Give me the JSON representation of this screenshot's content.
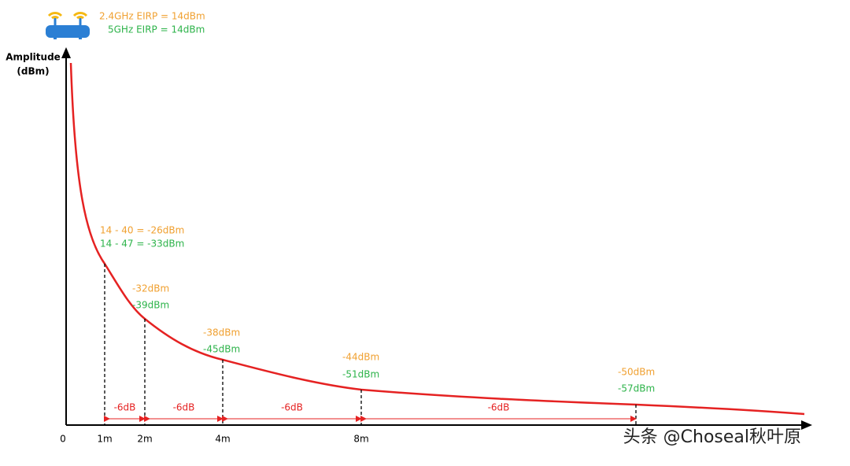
{
  "legend": {
    "line_24": "2.4GHz EIRP = 14dBm",
    "line_5": "5GHz EIRP = 14dBm"
  },
  "axis": {
    "y_label": "Amplitude",
    "y_unit": "(dBm)",
    "origin": "0"
  },
  "points": [
    {
      "distance": "1m",
      "label_24": "14 - 40 = -26dBm",
      "label_5": "14 - 47 = -33dBm"
    },
    {
      "distance": "2m",
      "label_24": "-32dBm",
      "label_5": "-39dBm"
    },
    {
      "distance": "4m",
      "label_24": "-38dBm",
      "label_5": "-45dBm"
    },
    {
      "distance": "8m",
      "label_24": "-44dBm",
      "label_5": "-51dBm"
    },
    {
      "label_24": "-50dBm",
      "label_5": "-57dBm"
    }
  ],
  "steps": [
    "-6dB",
    "-6dB",
    "-6dB",
    "-6dB"
  ],
  "watermark": "头条 @Choseal秋叶原"
}
